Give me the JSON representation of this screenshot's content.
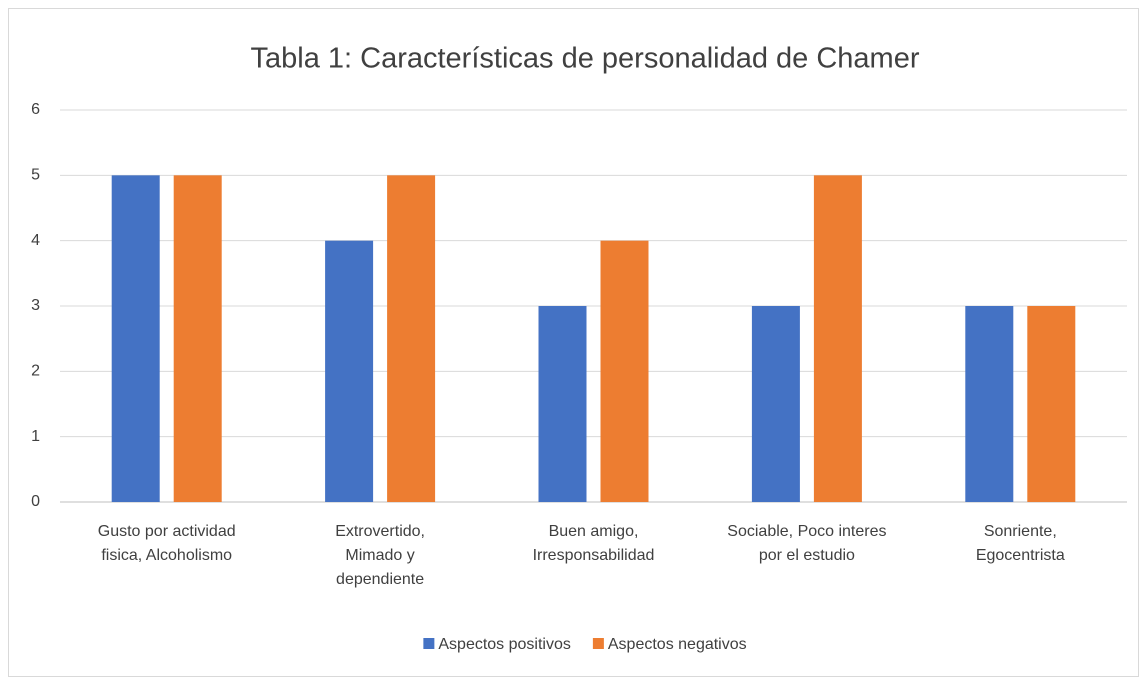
{
  "chart_data": {
    "type": "bar",
    "title": "Tabla 1: Características de personalidad de Chamer",
    "categories": [
      "Gusto por actividad\nfisica, Alcoholismo",
      "Extrovertido,\nMimado y\ndependiente",
      "Buen amigo,\nIrresponsabilidad",
      "Sociable, Poco interes\npor el estudio",
      "Sonriente,\nEgocentrista"
    ],
    "series": [
      {
        "name": "Aspectos positivos",
        "color": "#4472c4",
        "values": [
          5,
          4,
          3,
          3,
          3
        ]
      },
      {
        "name": "Aspectos negativos",
        "color": "#ed7d31",
        "values": [
          5,
          5,
          4,
          5,
          3
        ]
      }
    ],
    "ylim": [
      0,
      6
    ],
    "yticks": [
      0,
      1,
      2,
      3,
      4,
      5,
      6
    ],
    "grid": true,
    "legend": "bottom"
  }
}
